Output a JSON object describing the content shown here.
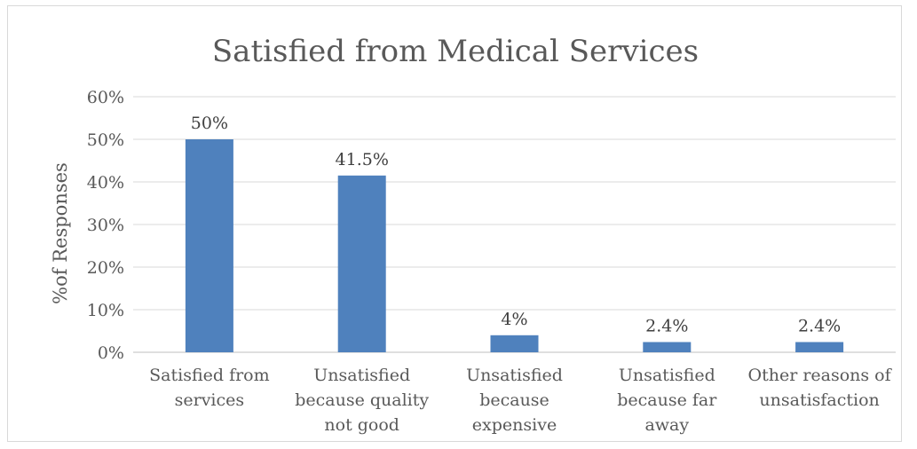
{
  "chart_data": {
    "type": "bar",
    "title": "Satisfied from Medical Services",
    "xlabel": "",
    "ylabel": "%of Responses",
    "ylim": [
      0,
      60
    ],
    "y_ticks": [
      "0%",
      "10%",
      "20%",
      "30%",
      "40%",
      "50%",
      "60%"
    ],
    "grid": true,
    "categories": [
      [
        "Satisfied from",
        "services"
      ],
      [
        "Unsatisfied",
        "because quality",
        "not good"
      ],
      [
        "Unsatisfied",
        "because",
        "expensive"
      ],
      [
        "Unsatisfied",
        "because far",
        "away"
      ],
      [
        "Other reasons of",
        "unsatisfaction"
      ]
    ],
    "values": [
      50,
      41.5,
      4,
      2.4,
      2.4
    ],
    "data_labels": [
      "50%",
      "41.5%",
      "4%",
      "2.4%",
      "2.4%"
    ],
    "colors": {
      "bar": "#4f81bd",
      "grid": "#d9d9d9",
      "axis": "#bfbfbf"
    }
  }
}
